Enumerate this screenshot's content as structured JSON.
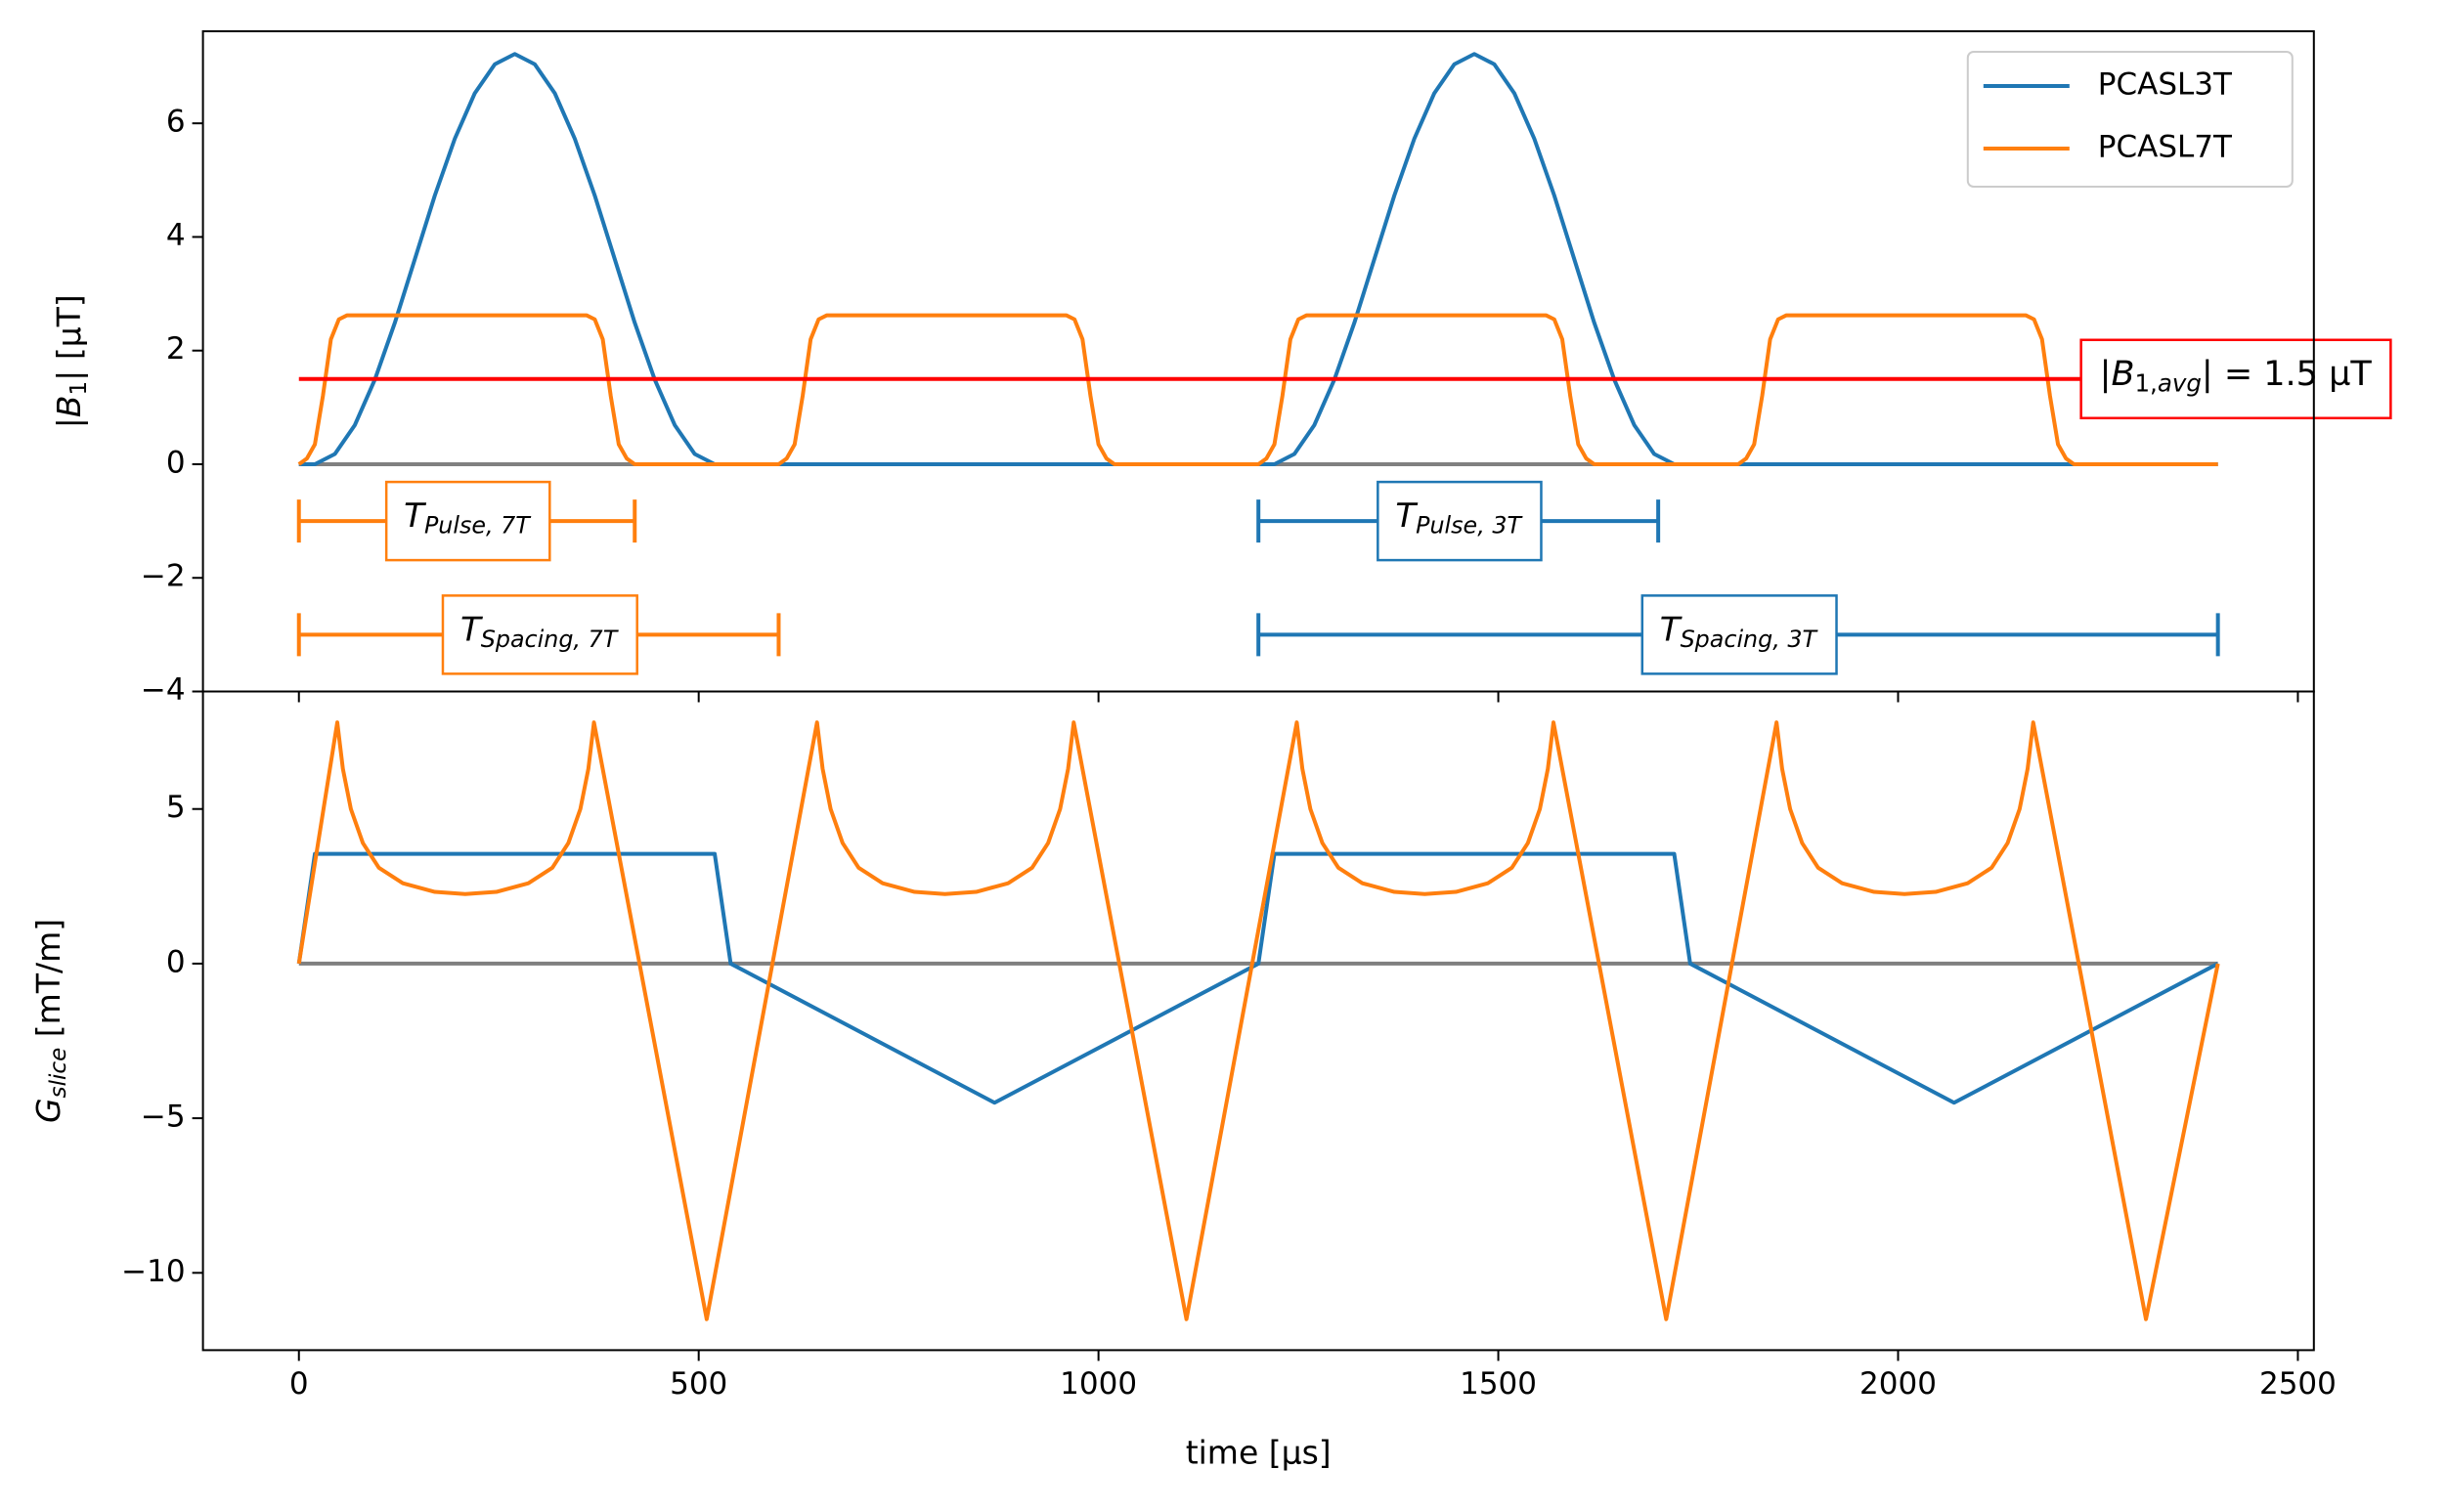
{
  "chart_data": [
    {
      "type": "line",
      "ylabel": [
        {
          "text": "|"
        },
        {
          "text": "B",
          "italic": true
        },
        {
          "text": "1",
          "sub": true
        },
        {
          "text": "| [µT]"
        }
      ],
      "xlim": [
        -120,
        2520
      ],
      "ylim": [
        -4,
        7.62
      ],
      "yticks": [
        {
          "value": -4,
          "label": "−4"
        },
        {
          "value": -2,
          "label": "−2"
        },
        0,
        2,
        4,
        6
      ],
      "legend": "upper right",
      "series": [
        {
          "name": "PCASL3T",
          "color": "#1f77b4",
          "x": [
            0,
            20,
            45,
            70,
            95,
            120,
            145,
            170,
            195,
            220,
            245,
            270,
            295,
            320,
            345,
            370,
            395,
            420,
            445,
            470,
            495,
            520,
            1220,
            1245,
            1270,
            1295,
            1320,
            1345,
            1370,
            1395,
            1420,
            1445,
            1470,
            1495,
            1520,
            1545,
            1570,
            1595,
            1620,
            1645,
            1670,
            1695,
            1720,
            2400
          ],
          "values": [
            0,
            0,
            0.18,
            0.69,
            1.49,
            2.49,
            3.61,
            4.73,
            5.73,
            6.53,
            7.04,
            7.22,
            7.04,
            6.53,
            5.73,
            4.73,
            3.61,
            2.49,
            1.49,
            0.69,
            0.18,
            0,
            0,
            0.18,
            0.69,
            1.49,
            2.49,
            3.61,
            4.73,
            5.73,
            6.53,
            7.04,
            7.22,
            7.04,
            6.53,
            5.73,
            4.73,
            3.61,
            2.49,
            1.49,
            0.69,
            0.18,
            0,
            0
          ]
        },
        {
          "name": "PCASL7T",
          "color": "#ff7f0e",
          "x": [
            0,
            10,
            20,
            30,
            40,
            50,
            60,
            360,
            370,
            380,
            390,
            400,
            410,
            420,
            600,
            610,
            620,
            630,
            640,
            650,
            660,
            960,
            970,
            980,
            990,
            1000,
            1010,
            1020,
            1200,
            1210,
            1220,
            1230,
            1240,
            1250,
            1260,
            1560,
            1570,
            1580,
            1590,
            1600,
            1610,
            1620,
            1800,
            1810,
            1820,
            1830,
            1840,
            1850,
            1860,
            2160,
            2170,
            2180,
            2190,
            2200,
            2210,
            2220,
            2400
          ],
          "values": [
            0,
            0.1,
            0.35,
            1.2,
            2.2,
            2.55,
            2.62,
            2.62,
            2.55,
            2.2,
            1.2,
            0.35,
            0.1,
            0,
            0,
            0.1,
            0.35,
            1.2,
            2.2,
            2.55,
            2.62,
            2.62,
            2.55,
            2.2,
            1.2,
            0.35,
            0.1,
            0,
            0,
            0.1,
            0.35,
            1.2,
            2.2,
            2.55,
            2.62,
            2.62,
            2.55,
            2.2,
            1.2,
            0.35,
            0.1,
            0,
            0,
            0.1,
            0.35,
            1.2,
            2.2,
            2.55,
            2.62,
            2.62,
            2.55,
            2.2,
            1.2,
            0.35,
            0.1,
            0,
            0
          ]
        }
      ],
      "zero_line": {
        "y": 0,
        "xmin": 0,
        "xmax": 2400,
        "color": "gray"
      },
      "avg_line": {
        "y": 1.5,
        "xmin": 0,
        "xmax": 2400,
        "color": "red",
        "label": [
          {
            "text": "|"
          },
          {
            "text": "B",
            "italic": true
          },
          {
            "text": "1,",
            "sub": true
          },
          {
            "text": "avg",
            "sub": true,
            "italic": true
          },
          {
            "text": "| = 1.5 µT"
          }
        ]
      },
      "intervals": [
        {
          "y": -1,
          "xmin": 0,
          "xmax": 420,
          "color": "#ff7f0e",
          "label": [
            {
              "text": "T",
              "italic": true
            },
            {
              "text": "Pulse, 7T",
              "sub": true,
              "italic": true
            }
          ]
        },
        {
          "y": -3,
          "xmin": 0,
          "xmax": 600,
          "color": "#ff7f0e",
          "label": [
            {
              "text": "T",
              "italic": true
            },
            {
              "text": "Spacing, 7T",
              "sub": true,
              "italic": true
            }
          ]
        },
        {
          "y": -1,
          "xmin": 1200,
          "xmax": 1700,
          "color": "#1f77b4",
          "label": [
            {
              "text": "T",
              "italic": true
            },
            {
              "text": "Pulse, 3T",
              "sub": true,
              "italic": true
            }
          ]
        },
        {
          "y": -3,
          "xmin": 1200,
          "xmax": 2400,
          "color": "#1f77b4",
          "label": [
            {
              "text": "T",
              "italic": true
            },
            {
              "text": "Spacing, 3T",
              "sub": true,
              "italic": true
            }
          ]
        }
      ]
    },
    {
      "type": "line",
      "xlabel": "time [µs]",
      "ylabel": [
        {
          "text": "G",
          "italic": true
        },
        {
          "text": "slice",
          "sub": true,
          "italic": true
        },
        {
          "text": " [mT/m]"
        }
      ],
      "xlim": [
        -120,
        2520
      ],
      "ylim": [
        -12.5,
        8.8
      ],
      "xticks": [
        0,
        500,
        1000,
        1500,
        2000,
        2500
      ],
      "yticks": [
        {
          "value": -10,
          "label": "−10"
        },
        {
          "value": -5,
          "label": "−5"
        },
        0,
        5
      ],
      "series": [
        {
          "color": "#1f77b4",
          "x": [
            0,
            20,
            520,
            540,
            870,
            1200,
            1220,
            1720,
            1740,
            2070,
            2400
          ],
          "values": [
            0,
            3.55,
            3.55,
            0,
            -4.5,
            0,
            3.55,
            3.55,
            0,
            -4.5,
            0
          ]
        },
        {
          "color": "#ff7f0e",
          "x": [
            0,
            48,
            55,
            65,
            80,
            100,
            130,
            170,
            208,
            247,
            287,
            317,
            337,
            352,
            362,
            369,
            510,
            648,
            655,
            665,
            680,
            700,
            730,
            770,
            808,
            847,
            887,
            917,
            937,
            952,
            962,
            969,
            1110,
            1248,
            1255,
            1265,
            1280,
            1300,
            1330,
            1370,
            1408,
            1447,
            1487,
            1517,
            1537,
            1552,
            1562,
            1569,
            1710,
            1848,
            1855,
            1865,
            1880,
            1900,
            1930,
            1970,
            2008,
            2047,
            2087,
            2117,
            2137,
            2152,
            2162,
            2169,
            2310,
            2400
          ],
          "values": [
            0,
            7.8,
            6.3,
            5.0,
            3.9,
            3.1,
            2.6,
            2.32,
            2.25,
            2.32,
            2.6,
            3.1,
            3.9,
            5.0,
            6.3,
            7.8,
            -11.5,
            7.8,
            6.3,
            5.0,
            3.9,
            3.1,
            2.6,
            2.32,
            2.25,
            2.32,
            2.6,
            3.1,
            3.9,
            5.0,
            6.3,
            7.8,
            -11.5,
            7.8,
            6.3,
            5.0,
            3.9,
            3.1,
            2.6,
            2.32,
            2.25,
            2.32,
            2.6,
            3.1,
            3.9,
            5.0,
            6.3,
            7.8,
            -11.5,
            7.8,
            6.3,
            5.0,
            3.9,
            3.1,
            2.6,
            2.32,
            2.25,
            2.32,
            2.6,
            3.1,
            3.9,
            5.0,
            6.3,
            7.8,
            -11.5,
            0
          ]
        }
      ],
      "zero_line": {
        "y": 0,
        "xmin": 0,
        "xmax": 2400,
        "color": "gray"
      }
    }
  ]
}
